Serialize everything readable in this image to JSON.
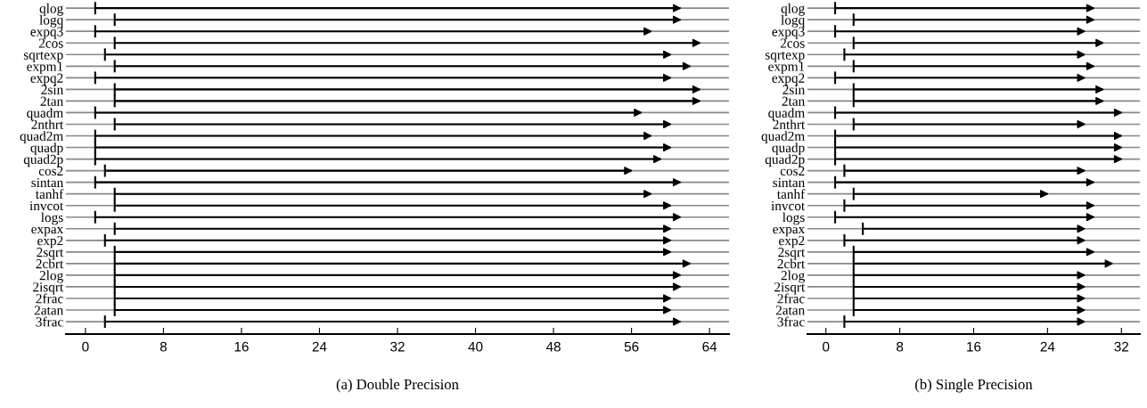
{
  "chart_data": [
    {
      "type": "bar",
      "orientation": "horizontal",
      "xlabel": "(a) Double Precision",
      "categories": [
        "qlog",
        "logq",
        "expq3",
        "2cos",
        "sqrtexp",
        "expm1",
        "expq2",
        "2sin",
        "2tan",
        "quadm",
        "2nthrt",
        "quad2m",
        "quadp",
        "quad2p",
        "cos2",
        "sintan",
        "tanhf",
        "invcot",
        "logs",
        "expax",
        "exp2",
        "2sqrt",
        "2cbrt",
        "2log",
        "2isqrt",
        "2frac",
        "2atan",
        "3frac"
      ],
      "base": [
        1,
        3,
        1,
        3,
        2,
        3,
        1,
        3,
        3,
        1,
        3,
        1,
        1,
        1,
        2,
        1,
        3,
        3,
        1,
        3,
        2,
        3,
        3,
        3,
        3,
        3,
        3,
        2
      ],
      "values": [
        60,
        58,
        57,
        60,
        58,
        59,
        59,
        60,
        60,
        56,
        57,
        57,
        59,
        58,
        54,
        60,
        55,
        57,
        60,
        57,
        58,
        57,
        59,
        58,
        58,
        57,
        57,
        59
      ],
      "color": "#000000",
      "xlim": [
        -2,
        66
      ],
      "xticks": [
        0,
        8,
        16,
        24,
        32,
        40,
        48,
        56,
        64
      ],
      "grid": "y"
    },
    {
      "type": "bar",
      "orientation": "horizontal",
      "xlabel": "(b) Single Precision",
      "categories": [
        "qlog",
        "logq",
        "expq3",
        "2cos",
        "sqrtexp",
        "expm1",
        "expq2",
        "2sin",
        "2tan",
        "quadm",
        "2nthrt",
        "quad2m",
        "quadp",
        "quad2p",
        "cos2",
        "sintan",
        "tanhf",
        "invcot",
        "logs",
        "expax",
        "exp2",
        "2sqrt",
        "2cbrt",
        "2log",
        "2isqrt",
        "2frac",
        "2atan",
        "3frac"
      ],
      "base": [
        1,
        3,
        1,
        3,
        2,
        3,
        1,
        3,
        3,
        1,
        3,
        1,
        1,
        1,
        2,
        1,
        3,
        2,
        1,
        4,
        2,
        3,
        3,
        3,
        3,
        3,
        3,
        2
      ],
      "values": [
        28,
        26,
        27,
        27,
        26,
        26,
        27,
        27,
        27,
        31,
        25,
        31,
        31,
        31,
        26,
        28,
        21,
        27,
        28,
        24,
        26,
        26,
        28,
        25,
        25,
        25,
        25,
        26
      ],
      "color": "#000000",
      "xlim": [
        -2,
        34
      ],
      "xticks": [
        0,
        8,
        16,
        24,
        32
      ],
      "grid": "y"
    }
  ]
}
